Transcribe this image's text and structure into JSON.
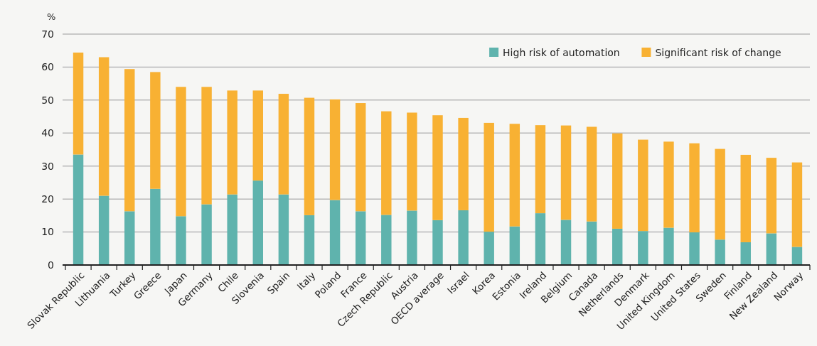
{
  "chart_data": {
    "type": "bar",
    "stacked": true,
    "ylabel": "%",
    "categories": [
      "Slovak Republic",
      "Lithuania",
      "Turkey",
      "Greece",
      "Japan",
      "Germany",
      "Chile",
      "Slovenia",
      "Spain",
      "Italy",
      "Poland",
      "France",
      "Czech Republic",
      "Austria",
      "OECD average",
      "Israel",
      "Korea",
      "Estonia",
      "Ireland",
      "Belgium",
      "Canada",
      "Netherlands",
      "Denmark",
      "United Kingdom",
      "United States",
      "Sweden",
      "Finland",
      "New Zealand",
      "Norway"
    ],
    "series": [
      {
        "name": "High risk of automation",
        "color": "#5fb3ad",
        "values": [
          33.5,
          21.0,
          16.3,
          23.1,
          14.8,
          18.4,
          21.4,
          25.6,
          21.4,
          15.1,
          19.7,
          16.3,
          15.2,
          16.5,
          13.6,
          16.6,
          10.1,
          11.7,
          15.7,
          13.7,
          13.2,
          11.0,
          10.3,
          11.3,
          9.9,
          7.7,
          6.9,
          9.6,
          5.5
        ]
      },
      {
        "name": "Significant risk of change",
        "color": "#f8b133",
        "values": [
          30.9,
          42.0,
          43.1,
          35.4,
          39.2,
          35.6,
          31.5,
          27.3,
          30.5,
          35.6,
          30.5,
          32.8,
          31.4,
          29.7,
          31.8,
          28.0,
          33.0,
          31.1,
          26.7,
          28.6,
          28.7,
          28.9,
          27.7,
          26.1,
          27.0,
          27.5,
          26.5,
          22.9,
          25.6
        ]
      }
    ],
    "ylim": [
      0,
      70
    ],
    "yticks": [
      0,
      10,
      20,
      30,
      40,
      50,
      60,
      70
    ],
    "grid": "y",
    "legend": "top right"
  }
}
